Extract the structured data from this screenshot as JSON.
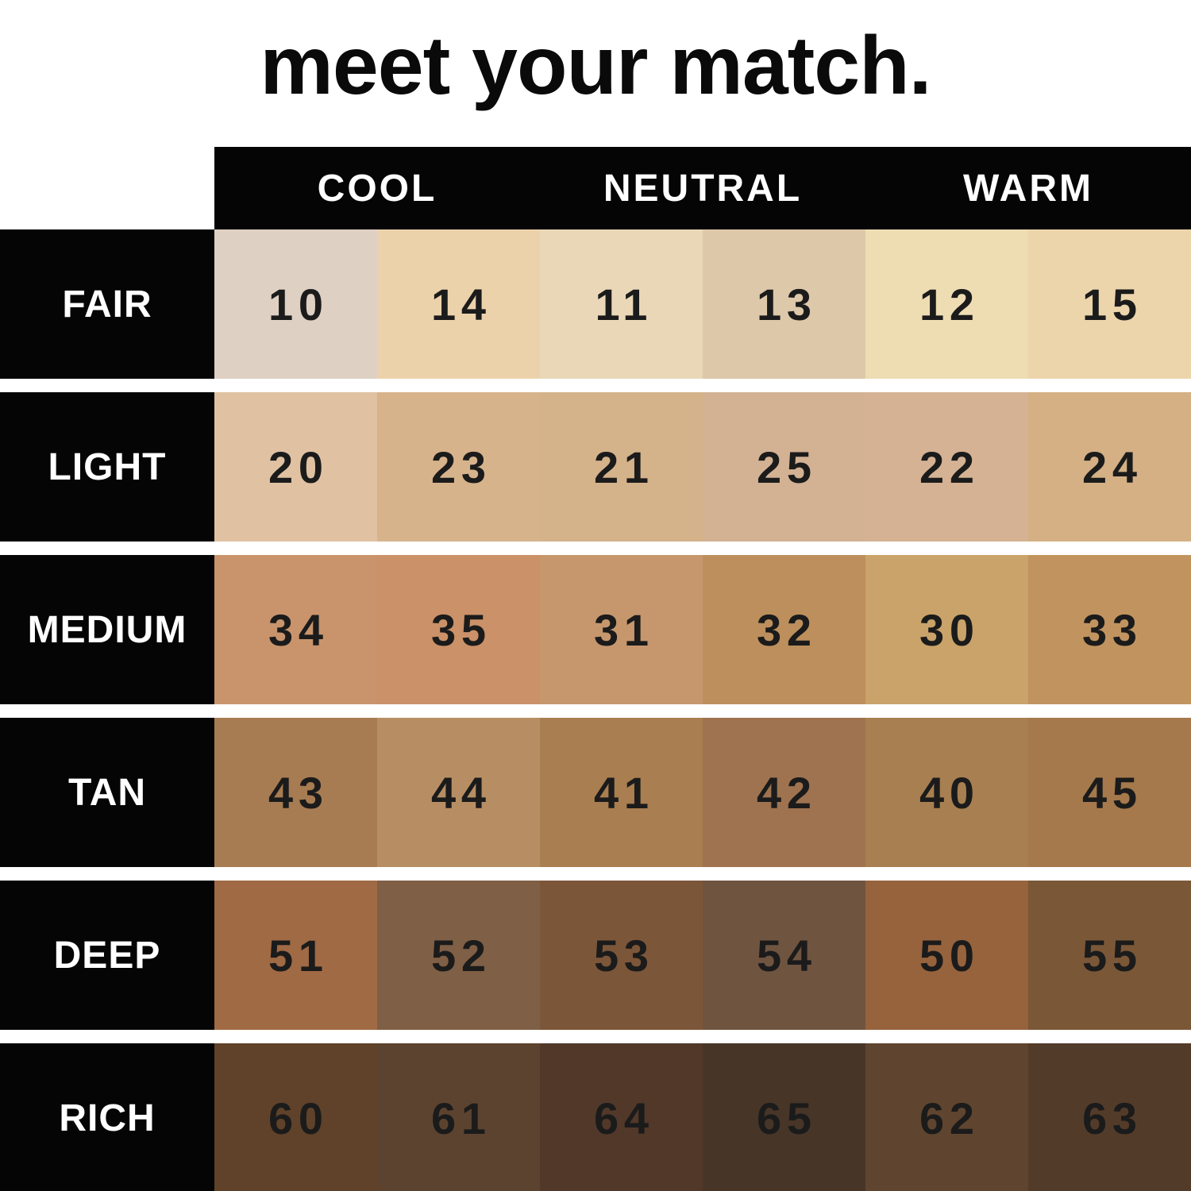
{
  "title": "meet your match.",
  "colors": {
    "background": "#ffffff",
    "bar_black": "#050505",
    "header_text": "#ffffff",
    "number_text": "#1b1b1b"
  },
  "chart_data": {
    "type": "table",
    "title": "meet your match.",
    "column_groups": [
      "COOL",
      "NEUTRAL",
      "WARM"
    ],
    "columns_per_group": 2,
    "row_labels": [
      "FAIR",
      "LIGHT",
      "MEDIUM",
      "TAN",
      "DEEP",
      "RICH"
    ],
    "rows": [
      {
        "label": "FAIR",
        "shades": [
          {
            "number": "10",
            "undertone": "COOL",
            "color": "#ded0c3"
          },
          {
            "number": "14",
            "undertone": "COOL",
            "color": "#ecd2ab"
          },
          {
            "number": "11",
            "undertone": "NEUTRAL",
            "color": "#e9d7b7"
          },
          {
            "number": "13",
            "undertone": "NEUTRAL",
            "color": "#dec8aa"
          },
          {
            "number": "12",
            "undertone": "WARM",
            "color": "#eedcb3"
          },
          {
            "number": "15",
            "undertone": "WARM",
            "color": "#ecd5ab"
          }
        ]
      },
      {
        "label": "LIGHT",
        "shades": [
          {
            "number": "20",
            "undertone": "COOL",
            "color": "#e0c2a2"
          },
          {
            "number": "23",
            "undertone": "COOL",
            "color": "#d7b38c"
          },
          {
            "number": "21",
            "undertone": "NEUTRAL",
            "color": "#d4b28a"
          },
          {
            "number": "25",
            "undertone": "NEUTRAL",
            "color": "#d3b193"
          },
          {
            "number": "22",
            "undertone": "WARM",
            "color": "#d5b293"
          },
          {
            "number": "24",
            "undertone": "WARM",
            "color": "#d4b084"
          }
        ]
      },
      {
        "label": "MEDIUM",
        "shades": [
          {
            "number": "34",
            "undertone": "COOL",
            "color": "#c9946c"
          },
          {
            "number": "35",
            "undertone": "COOL",
            "color": "#cb9168"
          },
          {
            "number": "31",
            "undertone": "NEUTRAL",
            "color": "#c6976d"
          },
          {
            "number": "32",
            "undertone": "NEUTRAL",
            "color": "#bd8f5c"
          },
          {
            "number": "30",
            "undertone": "WARM",
            "color": "#c9a369"
          },
          {
            "number": "33",
            "undertone": "WARM",
            "color": "#c1945f"
          }
        ]
      },
      {
        "label": "TAN",
        "shades": [
          {
            "number": "43",
            "undertone": "COOL",
            "color": "#a87c52"
          },
          {
            "number": "44",
            "undertone": "COOL",
            "color": "#b78e64"
          },
          {
            "number": "41",
            "undertone": "NEUTRAL",
            "color": "#a97e50"
          },
          {
            "number": "42",
            "undertone": "NEUTRAL",
            "color": "#9f7350"
          },
          {
            "number": "40",
            "undertone": "WARM",
            "color": "#a87f50"
          },
          {
            "number": "45",
            "undertone": "WARM",
            "color": "#a5794c"
          }
        ]
      },
      {
        "label": "DEEP",
        "shades": [
          {
            "number": "51",
            "undertone": "COOL",
            "color": "#a06a44"
          },
          {
            "number": "52",
            "undertone": "COOL",
            "color": "#7f5f45"
          },
          {
            "number": "53",
            "undertone": "NEUTRAL",
            "color": "#7c5639"
          },
          {
            "number": "54",
            "undertone": "NEUTRAL",
            "color": "#6f5440"
          },
          {
            "number": "50",
            "undertone": "WARM",
            "color": "#96633d"
          },
          {
            "number": "55",
            "undertone": "WARM",
            "color": "#7a5737"
          }
        ]
      },
      {
        "label": "RICH",
        "shades": [
          {
            "number": "60",
            "undertone": "COOL",
            "color": "#5f4229"
          },
          {
            "number": "61",
            "undertone": "COOL",
            "color": "#5c432f"
          },
          {
            "number": "64",
            "undertone": "NEUTRAL",
            "color": "#513829"
          },
          {
            "number": "65",
            "undertone": "NEUTRAL",
            "color": "#473528"
          },
          {
            "number": "62",
            "undertone": "WARM",
            "color": "#5f452f"
          },
          {
            "number": "63",
            "undertone": "WARM",
            "color": "#533b2a"
          }
        ]
      }
    ]
  }
}
